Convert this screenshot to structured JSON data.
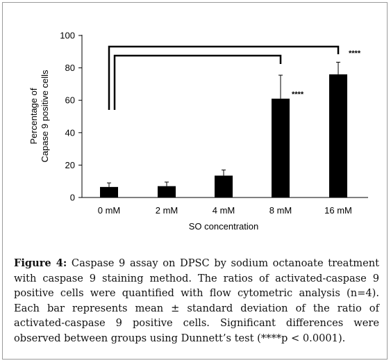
{
  "chart_data": {
    "type": "bar",
    "title": "",
    "xlabel": "SO concentration",
    "ylabel_lines": [
      "Percentage of",
      "Capase 9 positive cells"
    ],
    "categories": [
      "0 mM",
      "2 mM",
      "4 mM",
      "8 mM",
      "16 mM"
    ],
    "values": [
      6.5,
      7,
      13.5,
      61,
      76
    ],
    "error": [
      2.5,
      2.5,
      3.5,
      14.5,
      7.5
    ],
    "ylim": [
      0,
      100
    ],
    "yticks": [
      "0",
      "20",
      "40",
      "60",
      "80",
      "100"
    ],
    "significance_label": "****",
    "significance_marks": [
      {
        "from": "0 mM",
        "to": "16 mM",
        "label": "****"
      },
      {
        "from": "0 mM",
        "to": "8 mM",
        "label": "****"
      }
    ],
    "grid": false,
    "bar_color": "#000000"
  },
  "caption": {
    "label": "Figure 4:",
    "text": " Caspase 9 assay on DPSC by sodium octanoate treatment with caspase 9 staining method. The ratios of activated-caspase 9 positive cells were quantified with flow cytometric analysis (n=4). Each bar represents mean ± standard deviation of the ratio of activated-caspase 9 positive cells. Significant differences were observed between groups using Dunnett’s test (****p < 0.0001)."
  }
}
